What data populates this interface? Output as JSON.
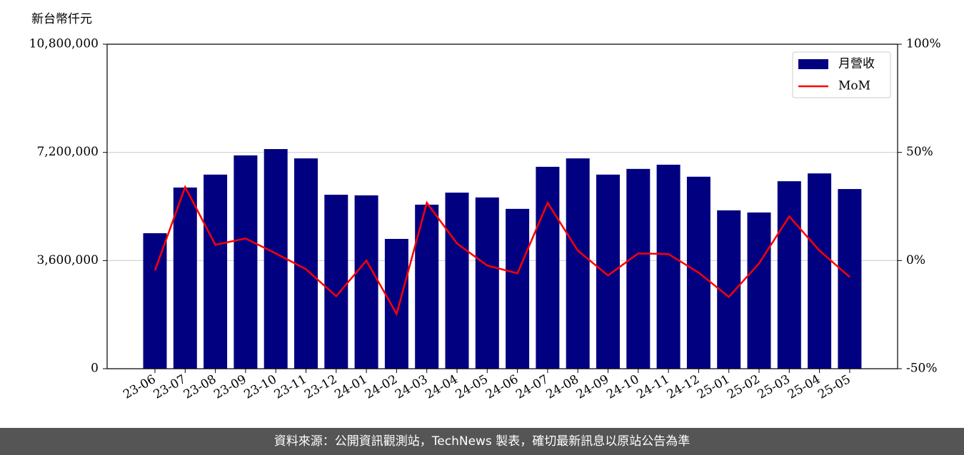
{
  "chart_data": {
    "type": "bar",
    "ylabel": "新台幣仟元",
    "categories": [
      "23-06",
      "23-07",
      "23-08",
      "23-09",
      "23-10",
      "23-11",
      "23-12",
      "24-01",
      "24-02",
      "24-03",
      "24-04",
      "24-05",
      "24-06",
      "24-07",
      "24-08",
      "24-09",
      "24-10",
      "24-11",
      "24-12",
      "25-01",
      "25-02",
      "25-03",
      "25-04",
      "25-05"
    ],
    "series": [
      {
        "name": "月營收",
        "color": "#000080",
        "values": [
          4510000,
          6030000,
          6460000,
          7100000,
          7310000,
          7000000,
          5790000,
          5770000,
          4320000,
          5460000,
          5860000,
          5700000,
          5320000,
          6720000,
          7000000,
          6460000,
          6650000,
          6790000,
          6390000,
          5270000,
          5200000,
          6240000,
          6500000,
          5980000
        ]
      },
      {
        "name": "MoM",
        "color": "#ff0000",
        "axis": "y2",
        "values": [
          -4.6,
          34,
          7.3,
          10.2,
          3.3,
          -4,
          -16.5,
          0,
          -24.7,
          26.7,
          7.9,
          -2.3,
          -5.9,
          26.7,
          4.6,
          -6.9,
          3.3,
          3,
          -5.6,
          -16.8,
          -1.3,
          20.4,
          4.6,
          -7.6
        ]
      }
    ],
    "ylim": [
      0,
      10800000
    ],
    "yticks": [
      0,
      {
        "value": 3600000,
        "label": "3,600,000"
      },
      {
        "value": 7200000,
        "label": "7,200,000"
      },
      {
        "value": 10800000,
        "label": "10,800,000"
      }
    ],
    "y2lim": [
      -50,
      100
    ],
    "y2ticks": [
      {
        "value": -50,
        "label": "-50%"
      },
      {
        "value": 0,
        "label": "0%"
      },
      {
        "value": 50,
        "label": "50%"
      },
      {
        "value": 100,
        "label": "100%"
      }
    ],
    "grid": true,
    "legend": "upper right"
  },
  "footer": "資料來源：公開資訊觀測站，TechNews 製表，確切最新訊息以原站公告為準"
}
